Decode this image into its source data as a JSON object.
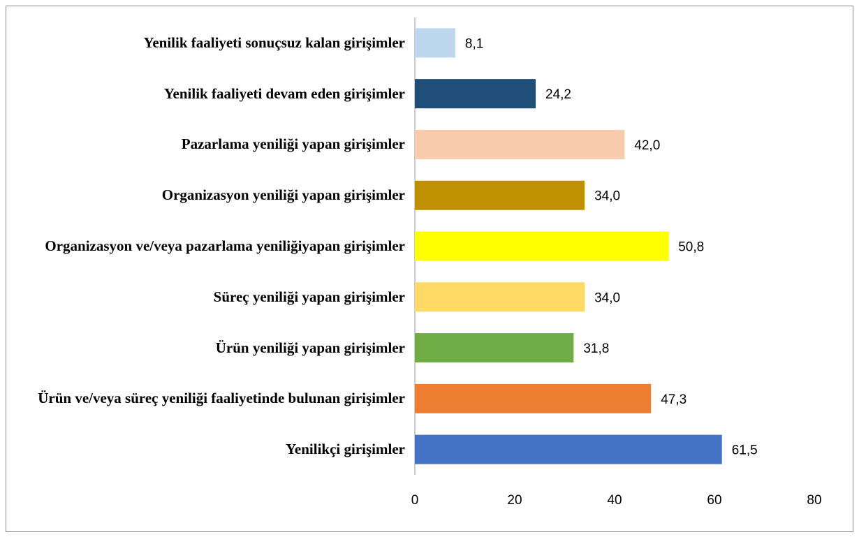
{
  "chart_data": {
    "type": "barh",
    "categories": [
      "Yenilik faaliyeti sonuçsuz kalan girişimler",
      "Yenilik faaliyeti devam eden girişimler",
      "Pazarlama yeniliği yapan girişimler",
      "Organizasyon yeniliği yapan girişimler",
      "Organizasyon ve/veya pazarlama yeniliğiyapan girişimler",
      "Süreç yeniliği yapan girişimler",
      "Ürün yeniliği yapan girişimler",
      "Ürün ve/veya süreç yeniliği faaliyetinde bulunan girişimler",
      "Yenilikçi girişimler"
    ],
    "values": [
      8.1,
      24.2,
      42.0,
      34.0,
      50.8,
      34.0,
      31.8,
      47.3,
      61.5
    ],
    "value_labels": [
      "8,1",
      "24,2",
      "42,0",
      "34,0",
      "50,8",
      "34,0",
      "31,8",
      "47,3",
      "61,5"
    ],
    "colors": [
      "#bdd7ee",
      "#1f4e79",
      "#f8cbad",
      "#bf9000",
      "#ffff00",
      "#ffd966",
      "#70ad47",
      "#ed7d31",
      "#4472c4"
    ],
    "xlim": [
      0,
      80
    ],
    "xticks": [
      0,
      20,
      40,
      60,
      80
    ],
    "grid": false
  }
}
